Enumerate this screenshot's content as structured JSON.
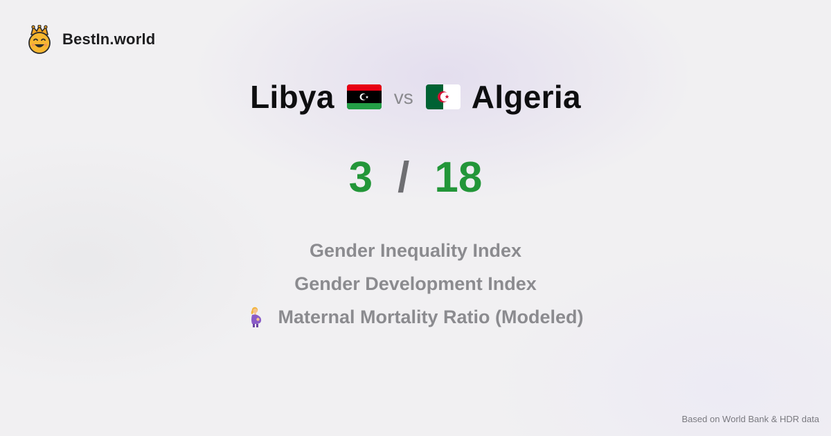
{
  "brand": {
    "name": "BestIn.world",
    "icon": "crown-smiley-icon"
  },
  "comparison": {
    "left_country": "Libya",
    "left_flag_icon": "libya-flag-icon",
    "vs_label": "vs",
    "right_country": "Algeria",
    "right_flag_icon": "algeria-flag-icon"
  },
  "score": {
    "left": "3",
    "separator": "/",
    "right": "18",
    "color": "#239639"
  },
  "metrics": [
    {
      "label": "Gender Inequality Index"
    },
    {
      "label": "Gender Development Index"
    },
    {
      "label": "Maternal Mortality Ratio (Modeled)",
      "icon": "pregnant-woman-icon"
    }
  ],
  "footer": {
    "source": "Based on World Bank & HDR data"
  }
}
